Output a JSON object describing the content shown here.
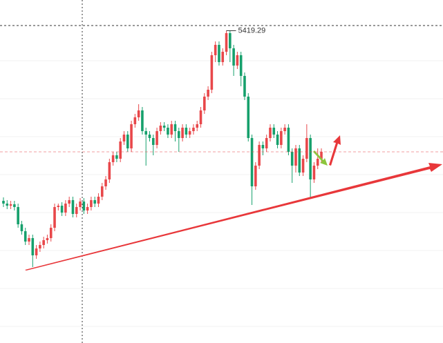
{
  "chart_data": {
    "type": "candlestick",
    "up_color": "#e8474a",
    "down_color": "#16a06c",
    "ylim": [
      5193,
      5441.5
    ],
    "open": [
      5296,
      5294,
      5292.5,
      5293.5,
      5291.5,
      5279,
      5274,
      5266.5,
      5269,
      5256.5,
      5261.5,
      5264,
      5267.5,
      5269,
      5276.5,
      5291.5,
      5292.5,
      5287.5,
      5294,
      5296.5,
      5286.5,
      5291.5,
      5295.5,
      5289,
      5291.5,
      5296.5,
      5294,
      5299,
      5306.5,
      5311.5,
      5324,
      5329,
      5326.5,
      5339,
      5344,
      5334,
      5351.5,
      5356.5,
      5361.5,
      5346.5,
      5344,
      5341.5,
      5336.5,
      5346.5,
      5350.5,
      5349,
      5344,
      5351.5,
      5346.5,
      5341.5,
      5349,
      5344,
      5346.5,
      5349,
      5351.5,
      5361.5,
      5371.5,
      5376.5,
      5401.5,
      5409,
      5396.5,
      5404,
      5417.5,
      5406.5,
      5394,
      5401.5,
      5386.5,
      5371.5,
      5341.5,
      5306.5,
      5321.5,
      5336.5,
      5334,
      5341.5,
      5349,
      5344,
      5336.5,
      5346.5,
      5349,
      5331.5,
      5321.5,
      5334,
      5316.5,
      5326.5,
      5341.5,
      5311.5,
      5321.5,
      5326.5
    ],
    "high": [
      5298.5,
      5296.5,
      5296,
      5296,
      5294,
      5281.5,
      5276.5,
      5271.5,
      5271.5,
      5264,
      5266.5,
      5270,
      5271.5,
      5279,
      5294,
      5294,
      5295,
      5296.5,
      5299,
      5299,
      5294,
      5298,
      5298,
      5294,
      5299,
      5299,
      5301.5,
      5309,
      5314,
      5326.5,
      5331.5,
      5331.5,
      5341.5,
      5346.5,
      5346.5,
      5354,
      5359,
      5366,
      5364,
      5349,
      5346.5,
      5344,
      5349,
      5353,
      5353,
      5351.5,
      5354,
      5354,
      5349,
      5351.5,
      5351.5,
      5349,
      5351.5,
      5354,
      5364,
      5374,
      5379,
      5404,
      5411.5,
      5411.5,
      5406.5,
      5419.29,
      5419,
      5409,
      5404,
      5404,
      5389,
      5374,
      5344,
      5324,
      5339,
      5339,
      5344,
      5351.5,
      5351.5,
      5346.5,
      5349,
      5351.5,
      5351.5,
      5334,
      5336.5,
      5336.5,
      5329,
      5351.5,
      5344,
      5324,
      5334,
      5334
    ],
    "low": [
      5291.5,
      5290,
      5290,
      5289,
      5276.5,
      5271.5,
      5264,
      5264,
      5248,
      5254,
      5259,
      5261.5,
      5265,
      5266.5,
      5274,
      5289,
      5285,
      5285,
      5291.5,
      5284,
      5284,
      5289,
      5286.5,
      5286.5,
      5289,
      5291.5,
      5291.5,
      5296.5,
      5304,
      5309,
      5321.5,
      5324,
      5324,
      5336.5,
      5331.5,
      5331.5,
      5349,
      5354,
      5344,
      5321.5,
      5339,
      5329,
      5334,
      5344,
      5346.5,
      5341.5,
      5341.5,
      5339,
      5331.5,
      5339,
      5341.5,
      5341.5,
      5344,
      5346.5,
      5349,
      5359,
      5369,
      5374,
      5396.5,
      5394,
      5394,
      5401.5,
      5396.5,
      5386.5,
      5391.5,
      5379,
      5369,
      5339,
      5293,
      5304,
      5319,
      5329,
      5331.5,
      5339,
      5341.5,
      5334,
      5334,
      5344,
      5329,
      5309,
      5316.5,
      5314,
      5314,
      5324,
      5298,
      5309,
      5319,
      5324
    ],
    "close": [
      5294,
      5292.5,
      5293.5,
      5291.5,
      5279,
      5274,
      5266.5,
      5269,
      5256.5,
      5261.5,
      5264,
      5267.5,
      5269,
      5276.5,
      5291.5,
      5292.5,
      5287.5,
      5294,
      5296.5,
      5286.5,
      5291.5,
      5295.5,
      5289,
      5291.5,
      5296.5,
      5294,
      5299,
      5306.5,
      5311.5,
      5324,
      5329,
      5326.5,
      5339,
      5344,
      5334,
      5351.5,
      5356.5,
      5361.5,
      5346.5,
      5344,
      5341.5,
      5336.5,
      5346.5,
      5350.5,
      5349,
      5344,
      5351.5,
      5346.5,
      5341.5,
      5349,
      5344,
      5346.5,
      5349,
      5351.5,
      5361.5,
      5371.5,
      5376.5,
      5401.5,
      5409,
      5396.5,
      5404,
      5417.5,
      5406.5,
      5394,
      5401.5,
      5386.5,
      5371.5,
      5341.5,
      5306.5,
      5321.5,
      5336.5,
      5334,
      5341.5,
      5349,
      5344,
      5336.5,
      5346.5,
      5349,
      5331.5,
      5321.5,
      5334,
      5316.5,
      5326.5,
      5341.5,
      5311.5,
      5321.5,
      5326.5,
      5331.5
    ]
  }
}
